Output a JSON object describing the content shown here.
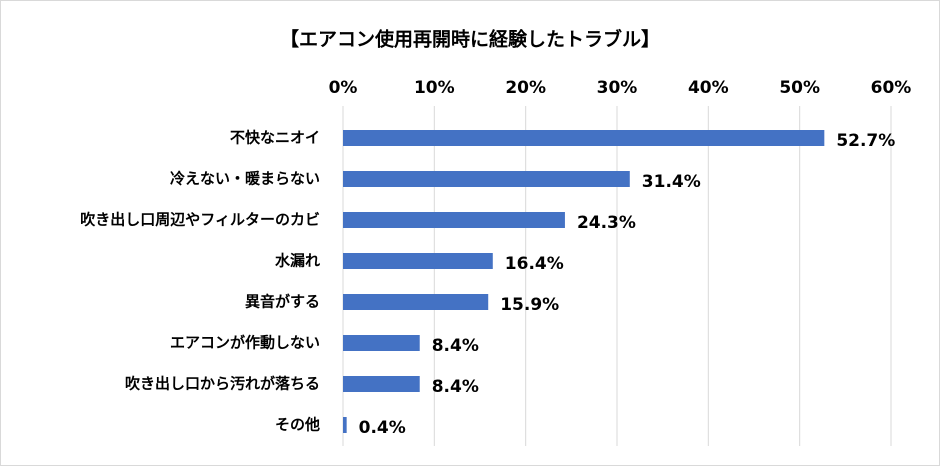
{
  "chart_data": {
    "type": "bar",
    "orientation": "horizontal",
    "title": "【エアコン使用再開時に経験したトラブル】",
    "categories": [
      "不快なニオイ",
      "冷えない・暖まらない",
      "吹き出し口周辺やフィルターのカビ",
      "水漏れ",
      "異音がする",
      "エアコンが作動しない",
      "吹き出し口から汚れが落ちる",
      "その他"
    ],
    "values": [
      52.7,
      31.4,
      24.3,
      16.4,
      15.9,
      8.4,
      8.4,
      0.4
    ],
    "value_labels": [
      "52.7%",
      "31.4%",
      "24.3%",
      "16.4%",
      "15.9%",
      "8.4%",
      "8.4%",
      "0.4%"
    ],
    "color": "#4472c4",
    "xlim": [
      0,
      60
    ],
    "xticks": [
      {
        "value": 0,
        "label": "0%"
      },
      {
        "value": 10,
        "label": "10%"
      },
      {
        "value": 20,
        "label": "20%"
      },
      {
        "value": 30,
        "label": "30%"
      },
      {
        "value": 40,
        "label": "40%"
      },
      {
        "value": 50,
        "label": "50%"
      },
      {
        "value": 60,
        "label": "60%"
      }
    ],
    "grid": true
  }
}
